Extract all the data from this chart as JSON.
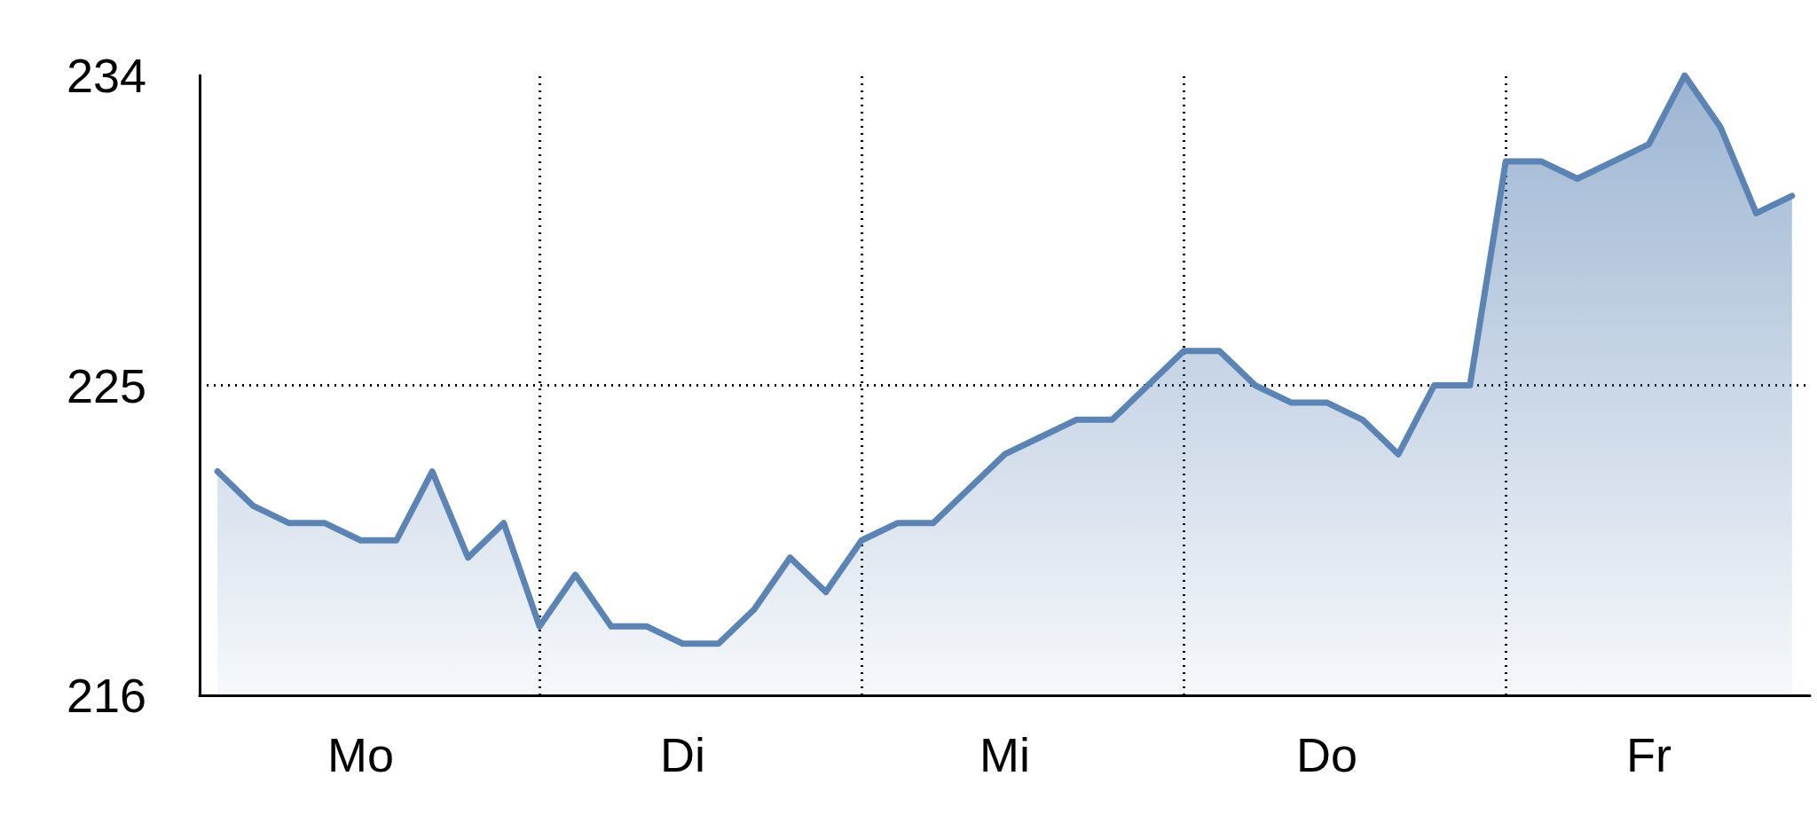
{
  "chart_data": {
    "type": "area",
    "categories": [
      null,
      null,
      null,
      null,
      "Mo",
      null,
      null,
      null,
      null,
      null,
      null,
      null,
      null,
      "Di",
      null,
      null,
      null,
      null,
      null,
      null,
      null,
      null,
      "Mi",
      null,
      null,
      null,
      null,
      null,
      null,
      null,
      null,
      "Do",
      null,
      null,
      null,
      null,
      null,
      null,
      null,
      null,
      "Fr",
      null,
      null,
      null,
      null
    ],
    "series": [
      {
        "color": "#5b83b4",
        "values": [
          222.5,
          221.5,
          221,
          221,
          220.5,
          220.5,
          222.5,
          220,
          221,
          218,
          219.5,
          218,
          218,
          217.5,
          217.5,
          218.5,
          220,
          219,
          220.5,
          221,
          221,
          222,
          223,
          223.5,
          224,
          224,
          225,
          226,
          226,
          225,
          224.5,
          224.5,
          224,
          223,
          225,
          225,
          231.5,
          231.5,
          231,
          231.5,
          232,
          234,
          232.5,
          230,
          230.5
        ]
      }
    ],
    "ylim": [
      216,
      234
    ],
    "yticks": [
      216,
      225,
      234
    ],
    "grid": "x",
    "marker": "none",
    "line_style": "solid",
    "ref_lines": [
      {
        "axis": "y",
        "value": 225,
        "label": null,
        "color": "#000000",
        "line_style": "dotted"
      }
    ]
  }
}
